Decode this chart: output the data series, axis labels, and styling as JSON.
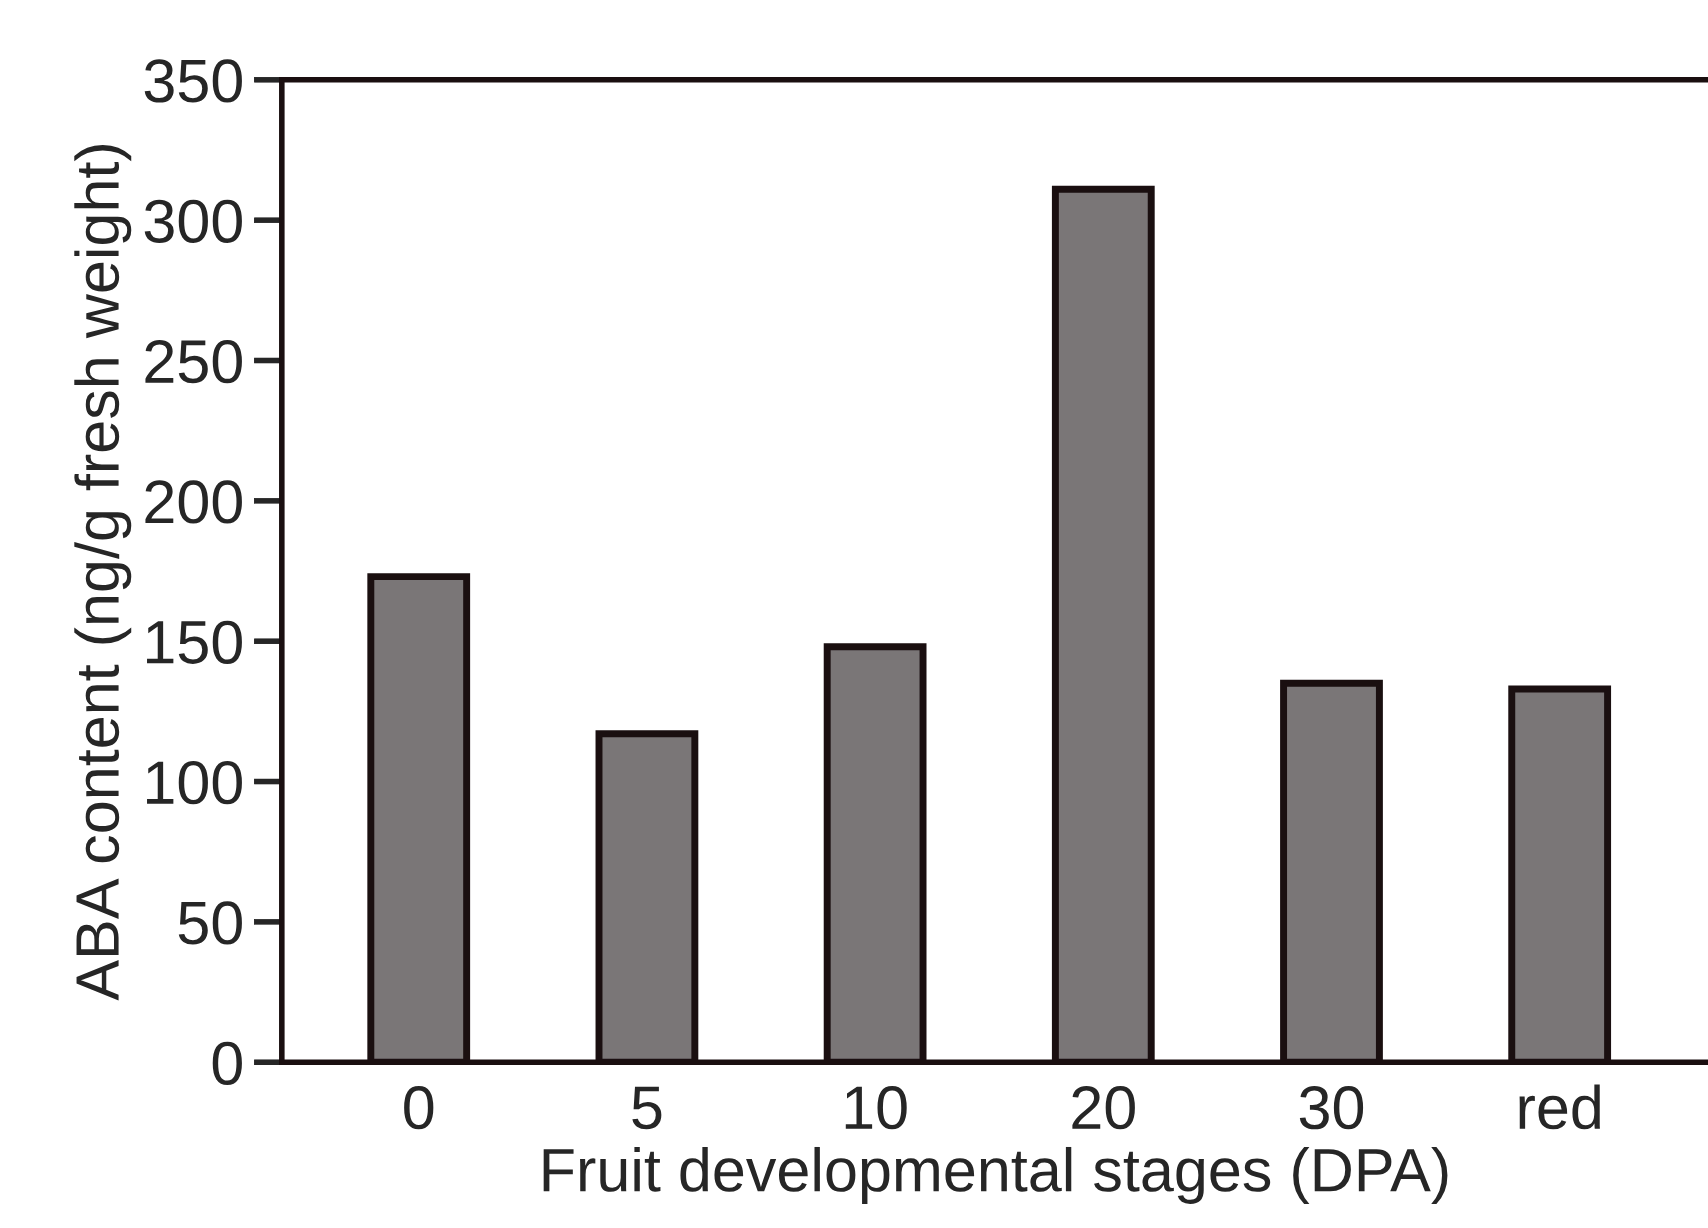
{
  "chart_data": {
    "type": "bar",
    "xlabel": "Fruit developmental stages (DPA)",
    "ylabel": "ABA content (ng/g fresh weight)",
    "categories": [
      "0",
      "5",
      "10",
      "20",
      "30",
      "red"
    ],
    "values": [
      173,
      117,
      148,
      311,
      135,
      133
    ],
    "color": "#7a7677",
    "ylim": [
      0,
      350
    ],
    "yticks": [
      0,
      50,
      100,
      150,
      200,
      250,
      300,
      350
    ],
    "grid": false
  }
}
